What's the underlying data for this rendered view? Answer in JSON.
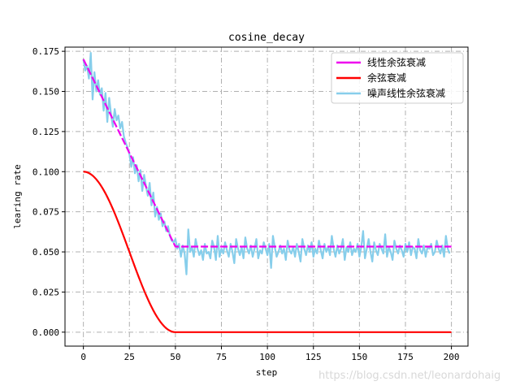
{
  "colors": {
    "linear": "#ee00ee",
    "cosine": "#ff0000",
    "noisy": "#87ceeb",
    "grid": "#b0b0b0",
    "watermark": "#d8d8d8"
  },
  "watermark": "https://blog.csdn.net/leonardohaig",
  "chart_data": {
    "type": "line",
    "title": "cosine_decay",
    "xlabel": "step",
    "ylabel": "learing rate",
    "xlim": [
      -10,
      209
    ],
    "ylim": [
      -0.0087,
      0.1776
    ],
    "xticks": [
      "0",
      "25",
      "50",
      "75",
      "100",
      "125",
      "150",
      "175",
      "200"
    ],
    "yticks": [
      "0.000",
      "0.025",
      "0.050",
      "0.075",
      "0.100",
      "0.125",
      "0.150",
      "0.175"
    ],
    "grid": true,
    "legend_position": "top-right",
    "series": [
      {
        "name": "线性余弦衰减",
        "color": "#ee00ee",
        "description_formula": "decay linearly from 0.17 to ~0.053 over first 50 steps, then flat",
        "x_start": 0,
        "x_end": 200,
        "key_points": [
          [
            0,
            0.17
          ],
          [
            50,
            0.0533
          ],
          [
            200,
            0.0533
          ]
        ]
      },
      {
        "name": "余弦衰减",
        "color": "#ff0000",
        "x_start": 0,
        "x_end": 200,
        "key_points": [
          [
            0,
            0.1
          ],
          [
            25,
            0.05
          ],
          [
            50,
            0.0
          ],
          [
            200,
            0.0
          ]
        ]
      },
      {
        "name": "噪声线性余弦衰减",
        "color": "#87ceeb",
        "x_start": 0,
        "x_end": 200,
        "values_first_50": [
          0.17,
          0.163,
          0.166,
          0.158,
          0.174,
          0.145,
          0.162,
          0.15,
          0.157,
          0.148,
          0.152,
          0.138,
          0.149,
          0.131,
          0.146,
          0.136,
          0.128,
          0.139,
          0.132,
          0.135,
          0.127,
          0.131,
          0.122,
          0.118,
          0.115,
          0.111,
          0.103,
          0.109,
          0.099,
          0.104,
          0.094,
          0.101,
          0.088,
          0.098,
          0.091,
          0.085,
          0.093,
          0.079,
          0.087,
          0.072,
          0.078,
          0.07,
          0.074,
          0.066,
          0.069,
          0.063,
          0.066,
          0.06,
          0.057,
          0.056
        ],
        "values_after_50": [
          0.058,
          0.052,
          0.055,
          0.047,
          0.054,
          0.049,
          0.036,
          0.064,
          0.05,
          0.053,
          0.047,
          0.058,
          0.052,
          0.048,
          0.051,
          0.045,
          0.055,
          0.049,
          0.05,
          0.046,
          0.057,
          0.053,
          0.045,
          0.06,
          0.047,
          0.052,
          0.049,
          0.056,
          0.051,
          0.047,
          0.055,
          0.05,
          0.043,
          0.058,
          0.052,
          0.048,
          0.053,
          0.046,
          0.059,
          0.052,
          0.049,
          0.054,
          0.047,
          0.052,
          0.058,
          0.046,
          0.051,
          0.049,
          0.056,
          0.052,
          0.048,
          0.055,
          0.04,
          0.06,
          0.053,
          0.047,
          0.05,
          0.054,
          0.049,
          0.052,
          0.045,
          0.057,
          0.051,
          0.049,
          0.053,
          0.047,
          0.055,
          0.05,
          0.044,
          0.058,
          0.052,
          0.048,
          0.054,
          0.05,
          0.056,
          0.047,
          0.052,
          0.049,
          0.057,
          0.051,
          0.046,
          0.055,
          0.05,
          0.053,
          0.048,
          0.06,
          0.052,
          0.047,
          0.054,
          0.049,
          0.052,
          0.058,
          0.045,
          0.053,
          0.05,
          0.056,
          0.048,
          0.052,
          0.05,
          0.055,
          0.047,
          0.053,
          0.063,
          0.046,
          0.052,
          0.058,
          0.05,
          0.044,
          0.056,
          0.051,
          0.048,
          0.055,
          0.052,
          0.049,
          0.061,
          0.047,
          0.053,
          0.05,
          0.045,
          0.057,
          0.052,
          0.049,
          0.054,
          0.051,
          0.047,
          0.055,
          0.05,
          0.056,
          0.048,
          0.053,
          0.052,
          0.046,
          0.058,
          0.051,
          0.049,
          0.054,
          0.047,
          0.053,
          0.052,
          0.055,
          0.048,
          0.05,
          0.057,
          0.052,
          0.049,
          0.054,
          0.047,
          0.06,
          0.052,
          0.049
        ]
      }
    ]
  }
}
